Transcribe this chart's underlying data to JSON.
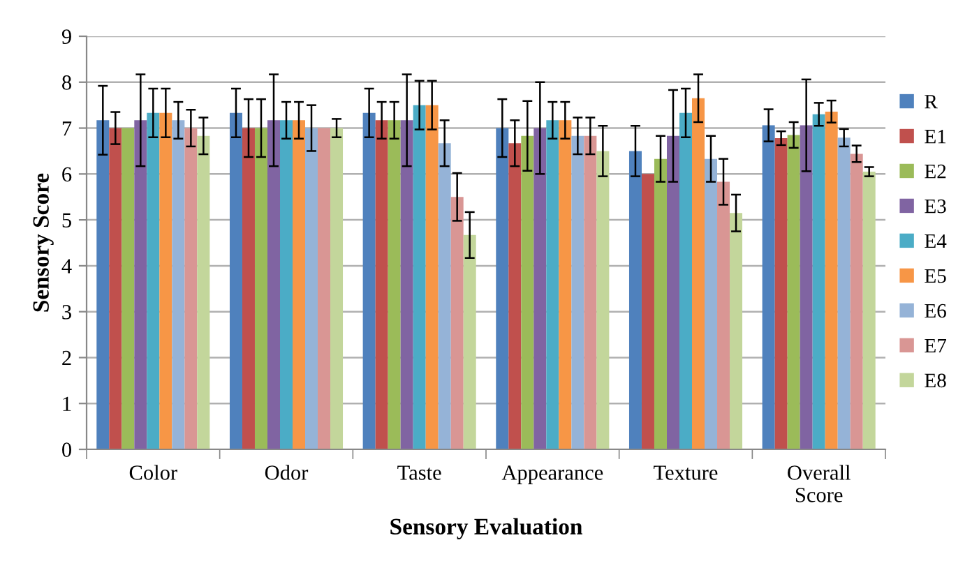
{
  "chart_data": {
    "type": "bar",
    "xlabel": "Sensory Evaluation",
    "ylabel": "Sensory Score",
    "categories": [
      "Color",
      "Odor",
      "Taste",
      "Appearance",
      "Texture",
      "Overall\nScore"
    ],
    "ylim": [
      0,
      9
    ],
    "yticks": [
      0,
      1,
      2,
      3,
      4,
      5,
      6,
      7,
      8,
      9
    ],
    "grid": "y",
    "legend": "right",
    "series": [
      {
        "name": "R",
        "color": "#4f81bd",
        "values": [
          7.17,
          7.33,
          7.33,
          7.0,
          6.5,
          7.06
        ],
        "errors": [
          0.75,
          0.53,
          0.53,
          0.63,
          0.55,
          0.35
        ]
      },
      {
        "name": "E1",
        "color": "#c0504d",
        "values": [
          7.0,
          7.0,
          7.17,
          6.67,
          6.0,
          6.78
        ],
        "errors": [
          0.35,
          0.63,
          0.4,
          0.5,
          null,
          0.15
        ]
      },
      {
        "name": "E2",
        "color": "#9bbb59",
        "values": [
          7.0,
          7.0,
          7.17,
          6.83,
          6.33,
          6.85
        ],
        "errors": [
          null,
          0.63,
          0.4,
          0.76,
          0.5,
          0.28
        ]
      },
      {
        "name": "E3",
        "color": "#8064a2",
        "values": [
          7.17,
          7.17,
          7.17,
          7.0,
          6.83,
          7.06
        ],
        "errors": [
          1.0,
          1.0,
          1.0,
          1.0,
          1.0,
          1.0
        ]
      },
      {
        "name": "E4",
        "color": "#4bacc6",
        "values": [
          7.33,
          7.17,
          7.5,
          7.17,
          7.33,
          7.3
        ],
        "errors": [
          0.53,
          0.4,
          0.53,
          0.4,
          0.53,
          0.25
        ]
      },
      {
        "name": "E5",
        "color": "#f79646",
        "values": [
          7.33,
          7.17,
          7.5,
          7.17,
          7.65,
          7.36
        ],
        "errors": [
          0.53,
          0.4,
          0.53,
          0.4,
          0.52,
          0.24
        ]
      },
      {
        "name": "E6",
        "color": "#95b3d7",
        "values": [
          7.17,
          7.0,
          6.67,
          6.83,
          6.33,
          6.79
        ],
        "errors": [
          0.4,
          0.5,
          0.5,
          0.4,
          0.5,
          0.19
        ]
      },
      {
        "name": "E7",
        "color": "#d99694",
        "values": [
          7.0,
          7.0,
          5.5,
          6.83,
          5.83,
          6.44
        ],
        "errors": [
          0.4,
          null,
          0.52,
          0.4,
          0.5,
          0.18
        ]
      },
      {
        "name": "E8",
        "color": "#c3d69b",
        "values": [
          6.83,
          7.0,
          4.67,
          6.5,
          5.15,
          6.05
        ],
        "errors": [
          0.4,
          0.2,
          0.5,
          0.55,
          0.4,
          0.1
        ]
      }
    ]
  }
}
